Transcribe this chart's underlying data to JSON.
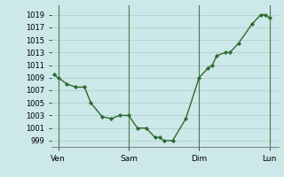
{
  "x_pts": [
    0,
    0.5,
    1.5,
    2.5,
    3.5,
    4.2,
    5.5,
    6.5,
    7.5,
    8.5,
    9.5,
    10.5,
    11.5,
    12.0,
    12.5,
    13.5,
    15.0,
    16.5,
    17.5,
    18.0,
    18.5,
    19.5,
    20.0,
    21.0,
    22.5,
    23.5,
    24.0,
    24.5
  ],
  "y_pts": [
    1009.5,
    1009.0,
    1008.0,
    1007.5,
    1007.5,
    1005.0,
    1002.8,
    1002.5,
    1003.0,
    1003.0,
    1001.0,
    1001.0,
    999.5,
    999.5,
    999.0,
    999.0,
    1002.5,
    1009.0,
    1010.5,
    1011.0,
    1012.5,
    1013.0,
    1013.0,
    1014.5,
    1017.5,
    1019.0,
    1019.0,
    1018.5
  ],
  "vline_positions": [
    0.5,
    8.5,
    16.5,
    24.5
  ],
  "x_tick_day_positions": [
    0.5,
    8.5,
    16.5,
    24.5
  ],
  "x_tick_labels": [
    "Ven",
    "Sam",
    "Dim",
    "Lun"
  ],
  "ylim": [
    998.0,
    1020.5
  ],
  "xlim": [
    -0.3,
    25.5
  ],
  "yticks": [
    999,
    1001,
    1003,
    1005,
    1007,
    1009,
    1011,
    1013,
    1015,
    1017,
    1019
  ],
  "line_color": "#2d6a2d",
  "marker_color": "#2d6a2d",
  "background_color": "#cce8e8",
  "grid_color": "#aacccc",
  "vline_color": "#4a7a4a"
}
